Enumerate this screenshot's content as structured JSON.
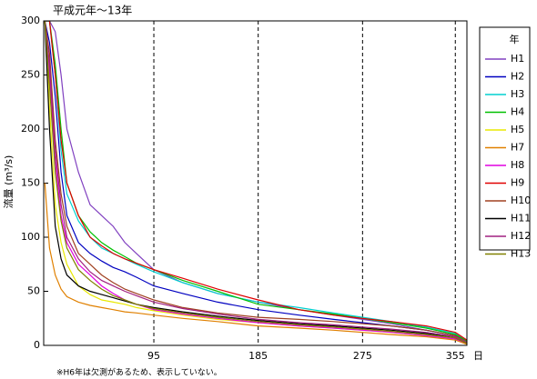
{
  "chart_data": {
    "type": "line",
    "title": "平成元年～13年",
    "y_label": "流量 (m³/s)",
    "x_label": "日",
    "footnote": "※H6年は欠測があるため、表示していない。",
    "legend_title": "年",
    "xlim": [
      0,
      365
    ],
    "xticks": [
      95,
      185,
      275,
      355
    ],
    "ylim": [
      0,
      300
    ],
    "yticks": [
      0,
      50,
      100,
      150,
      200,
      250,
      300
    ],
    "grid": true,
    "x": [
      1,
      5,
      10,
      15,
      20,
      30,
      40,
      50,
      60,
      70,
      80,
      95,
      120,
      150,
      185,
      220,
      250,
      275,
      300,
      330,
      355,
      365
    ],
    "series": [
      {
        "name": "H1",
        "color": "#8040c0",
        "values": [
          300,
          300,
          290,
          250,
          200,
          160,
          130,
          120,
          110,
          95,
          85,
          70,
          58,
          48,
          40,
          33,
          28,
          24,
          20,
          14,
          9,
          3
        ]
      },
      {
        "name": "H2",
        "color": "#0000c0",
        "values": [
          300,
          280,
          230,
          160,
          120,
          95,
          85,
          78,
          72,
          68,
          63,
          55,
          48,
          40,
          33,
          28,
          24,
          21,
          18,
          14,
          9,
          3
        ]
      },
      {
        "name": "H3",
        "color": "#00d0d0",
        "values": [
          300,
          300,
          250,
          180,
          140,
          115,
          100,
          90,
          85,
          80,
          75,
          68,
          58,
          48,
          40,
          35,
          30,
          26,
          22,
          17,
          11,
          4
        ]
      },
      {
        "name": "H4",
        "color": "#00c000",
        "values": [
          300,
          300,
          260,
          200,
          150,
          120,
          105,
          95,
          88,
          82,
          76,
          70,
          60,
          50,
          38,
          33,
          29,
          25,
          21,
          16,
          10,
          4
        ]
      },
      {
        "name": "H5",
        "color": "#e8e800",
        "values": [
          300,
          220,
          130,
          95,
          75,
          55,
          47,
          42,
          40,
          38,
          35,
          32,
          28,
          24,
          21,
          18,
          16,
          14,
          12,
          9,
          6,
          2
        ]
      },
      {
        "name": "H7",
        "color": "#e08000",
        "values": [
          150,
          90,
          65,
          52,
          45,
          40,
          37,
          35,
          33,
          31,
          30,
          28,
          25,
          22,
          18,
          16,
          14,
          12,
          10,
          8,
          5,
          1
        ]
      },
      {
        "name": "H8",
        "color": "#e000e0",
        "values": [
          300,
          250,
          170,
          120,
          95,
          75,
          65,
          55,
          48,
          42,
          38,
          33,
          29,
          25,
          21,
          18,
          16,
          14,
          12,
          9,
          6,
          2
        ]
      },
      {
        "name": "H9",
        "color": "#e00000",
        "values": [
          300,
          300,
          250,
          190,
          150,
          120,
          100,
          92,
          85,
          80,
          76,
          70,
          62,
          52,
          42,
          33,
          28,
          25,
          22,
          18,
          12,
          5
        ]
      },
      {
        "name": "H10",
        "color": "#a04020",
        "values": [
          300,
          270,
          190,
          140,
          110,
          85,
          75,
          65,
          58,
          52,
          48,
          42,
          35,
          30,
          26,
          24,
          22,
          20,
          18,
          14,
          9,
          3
        ]
      },
      {
        "name": "H11",
        "color": "#000000",
        "values": [
          300,
          200,
          110,
          80,
          65,
          55,
          50,
          47,
          44,
          41,
          38,
          35,
          31,
          27,
          23,
          20,
          18,
          16,
          14,
          11,
          7,
          2
        ]
      },
      {
        "name": "H12",
        "color": "#a02080",
        "values": [
          300,
          260,
          180,
          130,
          100,
          80,
          68,
          60,
          55,
          50,
          46,
          40,
          34,
          29,
          24,
          21,
          19,
          17,
          15,
          12,
          8,
          3
        ]
      },
      {
        "name": "H13",
        "color": "#808000",
        "values": [
          300,
          240,
          160,
          115,
          90,
          70,
          60,
          52,
          46,
          42,
          38,
          34,
          30,
          26,
          22,
          19,
          17,
          15,
          13,
          10,
          7,
          2
        ]
      }
    ]
  }
}
